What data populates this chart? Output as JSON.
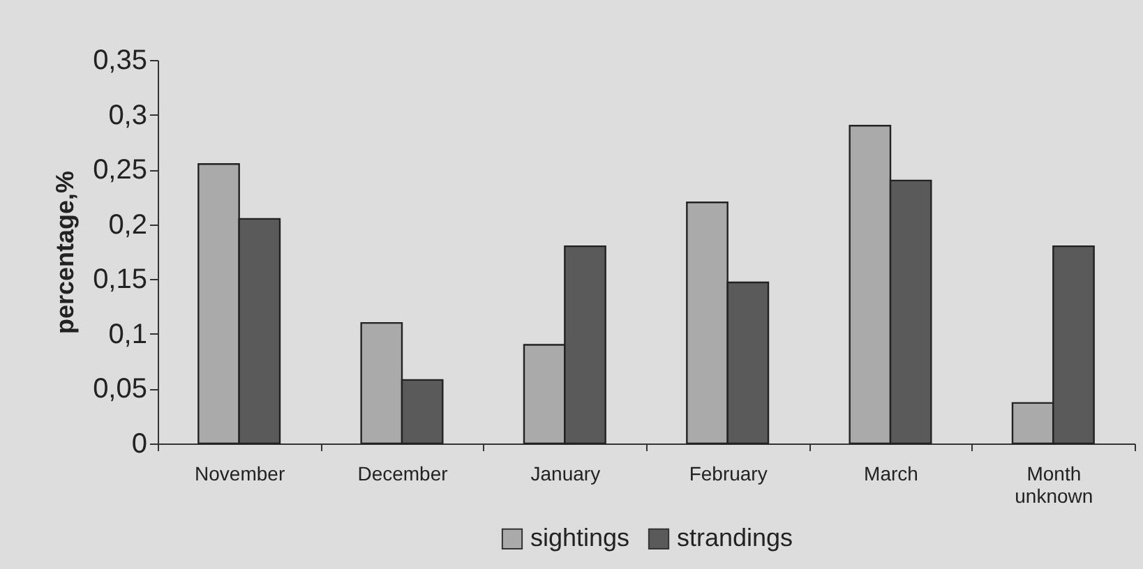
{
  "chart_data": {
    "type": "bar",
    "ylabel": "percentage,%",
    "categories": [
      "November",
      "December",
      "January",
      "February",
      "March",
      "Month unknown"
    ],
    "series": [
      {
        "name": "sightings",
        "color": "#aaaaaa",
        "values": [
          0.255,
          0.11,
          0.09,
          0.22,
          0.29,
          0.037
        ]
      },
      {
        "name": "strandings",
        "color": "#5a5a5a",
        "values": [
          0.205,
          0.058,
          0.18,
          0.147,
          0.24,
          0.18
        ]
      }
    ],
    "ylim": [
      0,
      0.35
    ],
    "yticks": [
      0,
      {
        "value": 0.05,
        "label": "0,05"
      },
      {
        "value": 0.1,
        "label": "0,1"
      },
      {
        "value": 0.15,
        "label": "0,15"
      },
      {
        "value": 0.2,
        "label": "0,2"
      },
      {
        "value": 0.25,
        "label": "0,25"
      },
      {
        "value": 0.3,
        "label": "0,3"
      },
      {
        "value": 0.35,
        "label": "0,35"
      }
    ],
    "legend": "bottom"
  }
}
